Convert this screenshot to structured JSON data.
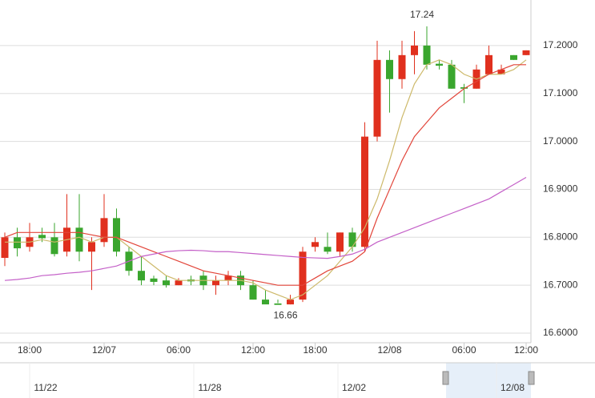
{
  "chart_data": {
    "type": "candlestick",
    "categories": [
      null,
      null,
      "18:00",
      null,
      null,
      null,
      null,
      null,
      "12/07",
      null,
      null,
      null,
      null,
      null,
      "06:00",
      null,
      null,
      null,
      null,
      null,
      "12:00",
      null,
      null,
      null,
      null,
      "18:00",
      null,
      null,
      null,
      null,
      null,
      "12/08",
      null,
      null,
      null,
      null,
      null,
      "06:00",
      null,
      null,
      null,
      null,
      "12:00"
    ],
    "open": [
      16.757,
      16.8,
      16.78,
      16.805,
      16.8,
      16.77,
      16.82,
      16.77,
      16.79,
      16.84,
      16.77,
      16.73,
      16.714,
      16.71,
      16.7,
      16.712,
      16.72,
      16.7,
      16.71,
      16.72,
      16.7,
      16.67,
      16.662,
      16.66,
      16.67,
      16.78,
      16.78,
      16.77,
      16.81,
      16.78,
      17.01,
      17.17,
      17.13,
      17.18,
      17.2,
      17.162,
      17.16,
      17.113,
      17.11,
      17.14,
      17.14,
      17.18,
      17.18
    ],
    "high": [
      16.81,
      16.82,
      16.83,
      16.82,
      16.83,
      16.89,
      16.89,
      16.8,
      16.89,
      16.86,
      16.78,
      16.76,
      16.72,
      16.72,
      16.715,
      16.72,
      16.73,
      16.72,
      16.73,
      16.73,
      16.71,
      16.69,
      16.67,
      16.68,
      16.78,
      16.8,
      16.81,
      16.81,
      16.82,
      17.04,
      17.21,
      17.19,
      17.21,
      17.23,
      17.24,
      17.17,
      17.17,
      17.12,
      17.16,
      17.2,
      17.16,
      17.18,
      17.19
    ],
    "low": [
      16.74,
      16.76,
      16.77,
      16.79,
      16.76,
      16.76,
      16.75,
      16.69,
      16.78,
      16.76,
      16.72,
      16.7,
      16.7,
      16.695,
      16.7,
      16.7,
      16.69,
      16.68,
      16.7,
      16.69,
      16.67,
      16.663,
      16.663,
      16.66,
      16.665,
      16.77,
      16.765,
      16.76,
      16.77,
      16.77,
      17.0,
      17.06,
      17.11,
      17.14,
      17.15,
      17.15,
      17.11,
      17.08,
      17.11,
      17.14,
      17.14,
      17.17,
      17.18
    ],
    "close": [
      16.8,
      16.777,
      16.8,
      16.798,
      16.765,
      16.82,
      16.77,
      16.79,
      16.84,
      16.77,
      16.73,
      16.71,
      16.707,
      16.7,
      16.71,
      16.708,
      16.7,
      16.71,
      16.72,
      16.7,
      16.67,
      16.66,
      16.659,
      16.67,
      16.77,
      16.79,
      16.77,
      16.81,
      16.78,
      17.01,
      17.17,
      17.13,
      17.18,
      17.2,
      17.16,
      17.158,
      17.11,
      17.11,
      17.15,
      17.18,
      17.15,
      17.17,
      17.19
    ],
    "up_color": "#e0301e",
    "down_color": "#3aa62e",
    "lines": [
      {
        "color": "#cdb96a",
        "values": [
          16.79,
          16.79,
          16.79,
          16.795,
          16.79,
          16.795,
          16.8,
          16.79,
          16.8,
          16.8,
          16.78,
          16.76,
          16.74,
          16.72,
          16.71,
          16.71,
          16.71,
          16.71,
          16.71,
          16.71,
          16.705,
          16.69,
          16.68,
          16.67,
          16.68,
          16.7,
          16.72,
          16.75,
          16.78,
          16.82,
          16.88,
          16.96,
          17.05,
          17.12,
          17.16,
          17.17,
          17.16,
          17.14,
          17.13,
          17.14,
          17.14,
          17.15,
          17.17
        ]
      },
      {
        "color": "#e2453a",
        "values": [
          16.8,
          16.81,
          16.81,
          16.81,
          16.81,
          16.81,
          16.81,
          16.805,
          16.8,
          16.8,
          16.79,
          16.78,
          16.77,
          16.76,
          16.75,
          16.74,
          16.73,
          16.725,
          16.72,
          16.715,
          16.71,
          16.705,
          16.7,
          16.7,
          16.7,
          16.715,
          16.73,
          16.74,
          16.75,
          16.77,
          16.84,
          16.9,
          16.96,
          17.01,
          17.04,
          17.07,
          17.09,
          17.11,
          17.125,
          17.14,
          17.15,
          17.16,
          17.16
        ]
      },
      {
        "color": "#c460c8",
        "values": [
          16.71,
          16.712,
          16.715,
          16.72,
          16.722,
          16.725,
          16.727,
          16.73,
          16.735,
          16.74,
          16.75,
          16.76,
          16.765,
          16.77,
          16.772,
          16.773,
          16.772,
          16.77,
          16.77,
          16.768,
          16.766,
          16.764,
          16.762,
          16.76,
          16.758,
          16.757,
          16.756,
          16.76,
          16.765,
          16.775,
          16.79,
          16.8,
          16.81,
          16.82,
          16.83,
          16.84,
          16.85,
          16.86,
          16.87,
          16.88,
          16.895,
          16.91,
          16.925
        ]
      }
    ],
    "ylim": [
      16.58,
      17.295
    ],
    "yticks": [
      {
        "value": 16.6,
        "label": "16.6000"
      },
      {
        "value": 16.7,
        "label": "16.7000"
      },
      {
        "value": 16.8,
        "label": "16.8000"
      },
      {
        "value": 16.9,
        "label": "16.9000"
      },
      {
        "value": 17.0,
        "label": "17.0000"
      },
      {
        "value": 17.1,
        "label": "17.1000"
      },
      {
        "value": 17.2,
        "label": "17.2000"
      }
    ],
    "grid": true,
    "annotations": [
      {
        "label": "17.24",
        "value": 17.24
      },
      {
        "label": "16.66",
        "value": 16.66
      }
    ],
    "navigator": {
      "labels": [
        "11/22",
        "11/28",
        "12/02",
        "12/08"
      ]
    }
  }
}
